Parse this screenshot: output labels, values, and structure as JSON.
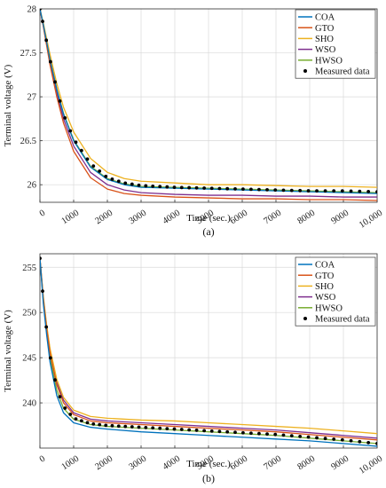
{
  "chart_data": [
    {
      "type": "line",
      "caption": "(a)",
      "xlabel": "Time (sec.)",
      "ylabel": "Terminal voltage (V)",
      "xlim": [
        0,
        10000
      ],
      "ylim": [
        25.8,
        28
      ],
      "grid": true,
      "legend_position": "top-right",
      "xticks": [
        {
          "v": 0,
          "t": "0"
        },
        {
          "v": 1000,
          "t": "1000"
        },
        {
          "v": 2000,
          "t": "2000"
        },
        {
          "v": 3000,
          "t": "3000"
        },
        {
          "v": 4000,
          "t": "4000"
        },
        {
          "v": 5000,
          "t": "5000"
        },
        {
          "v": 6000,
          "t": "6000"
        },
        {
          "v": 7000,
          "t": "7000"
        },
        {
          "v": 8000,
          "t": "8000"
        },
        {
          "v": 9000,
          "t": "9000"
        },
        {
          "v": 10000,
          "t": "10,000"
        }
      ],
      "yticks": [
        {
          "v": 26,
          "t": "26"
        },
        {
          "v": 26.5,
          "t": "26.5"
        },
        {
          "v": 27,
          "t": "27"
        },
        {
          "v": 27.5,
          "t": "27.5"
        },
        {
          "v": 28,
          "t": "28"
        }
      ],
      "x": [
        0,
        100,
        200,
        300,
        500,
        700,
        1000,
        1500,
        2000,
        2500,
        3000,
        4000,
        5000,
        6000,
        7000,
        8000,
        9000,
        10000
      ],
      "series": [
        {
          "name": "COA",
          "color": "#0072BD",
          "values": [
            28.0,
            27.82,
            27.62,
            27.42,
            27.08,
            26.8,
            26.5,
            26.2,
            26.06,
            26.0,
            25.97,
            25.96,
            25.95,
            25.94,
            25.93,
            25.92,
            25.91,
            25.9
          ]
        },
        {
          "name": "GTO",
          "color": "#D95319",
          "values": [
            28.0,
            27.8,
            27.58,
            27.36,
            27.0,
            26.7,
            26.38,
            26.08,
            25.95,
            25.9,
            25.88,
            25.86,
            25.85,
            25.84,
            25.84,
            25.83,
            25.83,
            25.82
          ]
        },
        {
          "name": "SHO",
          "color": "#EDB120",
          "values": [
            28.0,
            27.84,
            27.66,
            27.48,
            27.15,
            26.88,
            26.6,
            26.3,
            26.14,
            26.07,
            26.04,
            26.02,
            26.0,
            26.0,
            25.99,
            25.98,
            25.98,
            25.97
          ]
        },
        {
          "name": "WSO",
          "color": "#7E2F8E",
          "values": [
            28.0,
            27.81,
            27.6,
            27.39,
            27.04,
            26.75,
            26.44,
            26.14,
            26.0,
            25.94,
            25.91,
            25.89,
            25.88,
            25.88,
            25.87,
            25.87,
            25.86,
            25.86
          ]
        },
        {
          "name": "HWSO",
          "color": "#77AC30",
          "values": [
            28.0,
            27.83,
            27.63,
            27.43,
            27.09,
            26.81,
            26.51,
            26.21,
            26.07,
            26.01,
            25.98,
            25.97,
            25.96,
            25.95,
            25.94,
            25.93,
            25.92,
            25.91
          ]
        },
        {
          "name": "Measured data",
          "color": "#000000",
          "marker": "dot",
          "values": [
            28.0,
            27.82,
            27.62,
            27.42,
            27.08,
            26.8,
            26.52,
            26.24,
            26.08,
            26.02,
            25.99,
            25.97,
            25.96,
            25.95,
            25.94,
            25.93,
            25.93,
            25.92
          ]
        }
      ]
    },
    {
      "type": "line",
      "caption": "(b)",
      "xlabel": "Time (sec.)",
      "ylabel": "Terminal voltage (V)",
      "xlim": [
        0,
        10000
      ],
      "ylim": [
        235,
        256.5
      ],
      "grid": true,
      "legend_position": "top-right",
      "xticks": [
        {
          "v": 0,
          "t": "0"
        },
        {
          "v": 1000,
          "t": "1000"
        },
        {
          "v": 2000,
          "t": "2000"
        },
        {
          "v": 3000,
          "t": "3000"
        },
        {
          "v": 4000,
          "t": "4000"
        },
        {
          "v": 5000,
          "t": "5000"
        },
        {
          "v": 6000,
          "t": "6000"
        },
        {
          "v": 7000,
          "t": "7000"
        },
        {
          "v": 8000,
          "t": "8000"
        },
        {
          "v": 9000,
          "t": "9000"
        },
        {
          "v": 10000,
          "t": "10,000"
        }
      ],
      "yticks": [
        {
          "v": 240,
          "t": "240"
        },
        {
          "v": 245,
          "t": "245"
        },
        {
          "v": 250,
          "t": "250"
        },
        {
          "v": 255,
          "t": "255"
        }
      ],
      "x": [
        0,
        100,
        200,
        300,
        500,
        700,
        1000,
        1500,
        2000,
        3000,
        4000,
        5000,
        6000,
        7000,
        8000,
        9000,
        10000
      ],
      "series": [
        {
          "name": "COA",
          "color": "#0072BD",
          "values": [
            256.0,
            251.0,
            247.5,
            244.5,
            240.8,
            238.9,
            237.8,
            237.3,
            237.1,
            236.8,
            236.6,
            236.4,
            236.2,
            236.0,
            235.8,
            235.5,
            235.2
          ]
        },
        {
          "name": "GTO",
          "color": "#D95319",
          "values": [
            256.0,
            251.5,
            248.2,
            245.5,
            242.0,
            240.0,
            238.7,
            238.0,
            237.8,
            237.6,
            237.4,
            237.2,
            237.0,
            236.8,
            236.5,
            236.2,
            235.9
          ]
        },
        {
          "name": "SHO",
          "color": "#EDB120",
          "values": [
            256.0,
            251.8,
            248.6,
            246.0,
            242.6,
            240.6,
            239.2,
            238.5,
            238.3,
            238.1,
            238.0,
            237.8,
            237.6,
            237.4,
            237.2,
            236.9,
            236.6
          ]
        },
        {
          "name": "WSO",
          "color": "#7E2F8E",
          "values": [
            256.0,
            251.6,
            248.4,
            245.8,
            242.3,
            240.3,
            238.9,
            238.2,
            238.0,
            237.8,
            237.6,
            237.4,
            237.2,
            237.0,
            236.7,
            236.4,
            236.1
          ]
        },
        {
          "name": "HWSO",
          "color": "#77AC30",
          "values": [
            256.0,
            251.3,
            247.9,
            245.0,
            241.4,
            239.4,
            238.2,
            237.6,
            237.4,
            237.2,
            237.0,
            236.8,
            236.6,
            236.4,
            236.1,
            235.8,
            235.5
          ]
        },
        {
          "name": "Measured data",
          "color": "#000000",
          "marker": "dot",
          "values": [
            256.0,
            251.4,
            248.0,
            245.2,
            241.6,
            239.6,
            238.3,
            237.7,
            237.5,
            237.3,
            237.1,
            236.9,
            236.7,
            236.5,
            236.2,
            235.9,
            235.5
          ]
        }
      ]
    }
  ]
}
